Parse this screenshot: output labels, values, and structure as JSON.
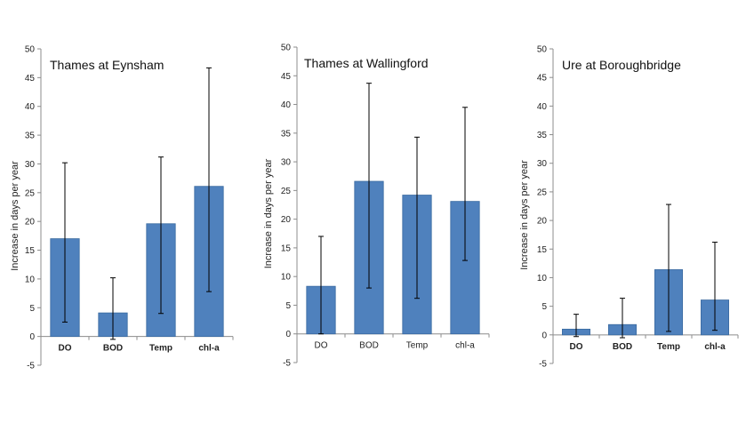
{
  "colors": {
    "bar": "#4f81bd",
    "bar_stroke": "#3a6aa0",
    "axis": "#8c8c8c",
    "error": "#000000"
  },
  "chart_data": [
    {
      "type": "bar",
      "title": "Thames at Eynsham",
      "ylabel": "Increase in days per year",
      "ylim": [
        -5,
        50
      ],
      "yticks": [
        "-5",
        "0",
        "5",
        "10",
        "15",
        "20",
        "25",
        "30",
        "35",
        "40",
        "45",
        "50"
      ],
      "categories": [
        "DO",
        "BOD",
        "Temp",
        "chl-a"
      ],
      "values": [
        17,
        4.1,
        19.6,
        26.1
      ],
      "error_low": [
        2.5,
        -0.5,
        4,
        7.8
      ],
      "error_high": [
        30.2,
        10.2,
        31.2,
        46.7
      ]
    },
    {
      "type": "bar",
      "title": "Thames at Wallingford",
      "ylabel": "Increase in days per year",
      "ylim": [
        -5,
        50
      ],
      "yticks": [
        "-5",
        "0",
        "5",
        "10",
        "15",
        "20",
        "25",
        "30",
        "35",
        "40",
        "45",
        "50"
      ],
      "categories": [
        "DO",
        "BOD",
        "Temp",
        "chl-a"
      ],
      "values": [
        8.3,
        26.6,
        24.2,
        23.1
      ],
      "error_low": [
        0,
        8,
        6.2,
        12.8
      ],
      "error_high": [
        17,
        43.7,
        34.3,
        39.5
      ]
    },
    {
      "type": "bar",
      "title": "Ure at Boroughbridge",
      "ylabel": "Increase in days per year",
      "ylim": [
        -5,
        50
      ],
      "yticks": [
        "-5",
        "0",
        "5",
        "10",
        "15",
        "20",
        "25",
        "30",
        "35",
        "40",
        "45",
        "50"
      ],
      "categories": [
        "DO",
        "BOD",
        "Temp",
        "chl-a"
      ],
      "values": [
        1,
        1.8,
        11.4,
        6.1
      ],
      "error_low": [
        -0.3,
        -0.5,
        0.6,
        0.8
      ],
      "error_high": [
        3.6,
        6.4,
        22.8,
        16.2
      ]
    }
  ]
}
